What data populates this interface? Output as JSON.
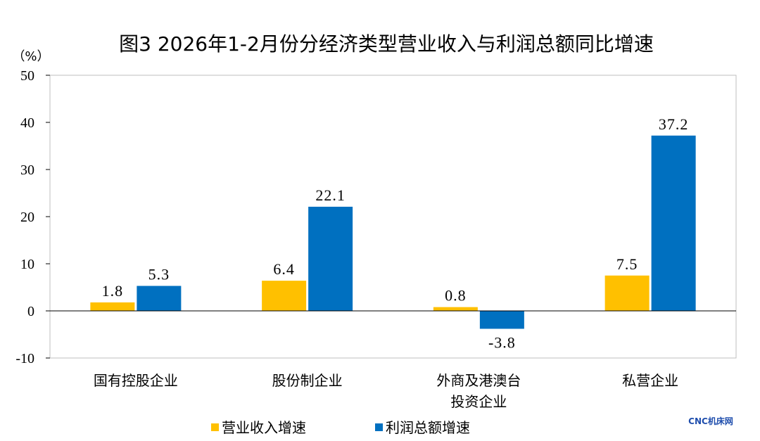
{
  "chart_data": {
    "type": "bar",
    "title": "图3 2026年1-2月份分经济类型营业收入与利润总额同比增速",
    "unit_label": "（%）",
    "categories": [
      [
        "国有控股企业"
      ],
      [
        "股份制企业"
      ],
      [
        "外商及港澳台",
        "投资企业"
      ],
      [
        "私营企业"
      ]
    ],
    "series": [
      {
        "name": "营业收入增速",
        "color": "#FFC000",
        "values": [
          1.8,
          6.4,
          0.8,
          7.5
        ]
      },
      {
        "name": "利润总额增速",
        "color": "#0070C0",
        "values": [
          5.3,
          22.1,
          -3.8,
          37.2
        ]
      }
    ],
    "ylim": [
      -10,
      50
    ],
    "yticks": [
      -10,
      0,
      10,
      20,
      30,
      40,
      50
    ],
    "legend_position": "bottom"
  },
  "watermark": "CNC机床网",
  "watermark_color": "#1F4EAD"
}
